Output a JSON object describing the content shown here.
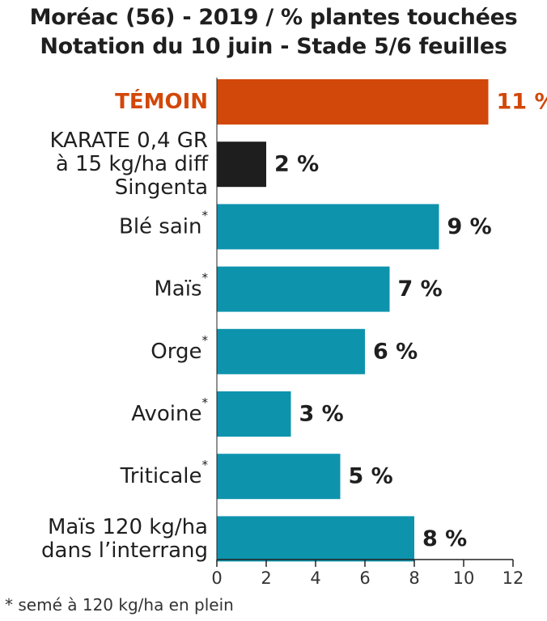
{
  "chart_data": {
    "type": "bar",
    "orientation": "horizontal",
    "title": "Moréac (56) - 2019 / % plantes touchées",
    "subtitle": "Notation du 10 juin - Stade 5/6 feuilles",
    "footnote": "* semé à 120 kg/ha en plein",
    "xlim": [
      0,
      12
    ],
    "xticks": [
      "0",
      "2",
      "4",
      "6",
      "8",
      "10",
      "12"
    ],
    "categories": [
      {
        "lines": [
          "TÉMOIN"
        ],
        "sup": "",
        "value": 11,
        "label": "11 %",
        "color": "#d2480a",
        "label_color": "#d2480a"
      },
      {
        "lines": [
          "KARATE 0,4 GR",
          "à 15 kg/ha diff",
          "Singenta"
        ],
        "sup": "",
        "value": 2,
        "label": "2 %",
        "color": "#1e1e1e",
        "label_color": "#1f1f1f"
      },
      {
        "lines": [
          "Blé sain"
        ],
        "sup": "*",
        "value": 9,
        "label": "9 %",
        "color": "#0e93ad",
        "label_color": "#1f1f1f"
      },
      {
        "lines": [
          "Maïs"
        ],
        "sup": "*",
        "value": 7,
        "label": "7 %",
        "color": "#0e93ad",
        "label_color": "#1f1f1f"
      },
      {
        "lines": [
          "Orge"
        ],
        "sup": "*",
        "value": 6,
        "label": "6 %",
        "color": "#0e93ad",
        "label_color": "#1f1f1f"
      },
      {
        "lines": [
          "Avoine"
        ],
        "sup": "*",
        "value": 3,
        "label": "3 %",
        "color": "#0e93ad",
        "label_color": "#1f1f1f"
      },
      {
        "lines": [
          "Triticale"
        ],
        "sup": "*",
        "value": 5,
        "label": "5 %",
        "color": "#0e93ad",
        "label_color": "#1f1f1f"
      },
      {
        "lines": [
          "Maïs 120 kg/ha",
          "dans l’interrang"
        ],
        "sup": "",
        "value": 8,
        "label": "8 %",
        "color": "#0e93ad",
        "label_color": "#1f1f1f"
      }
    ]
  }
}
